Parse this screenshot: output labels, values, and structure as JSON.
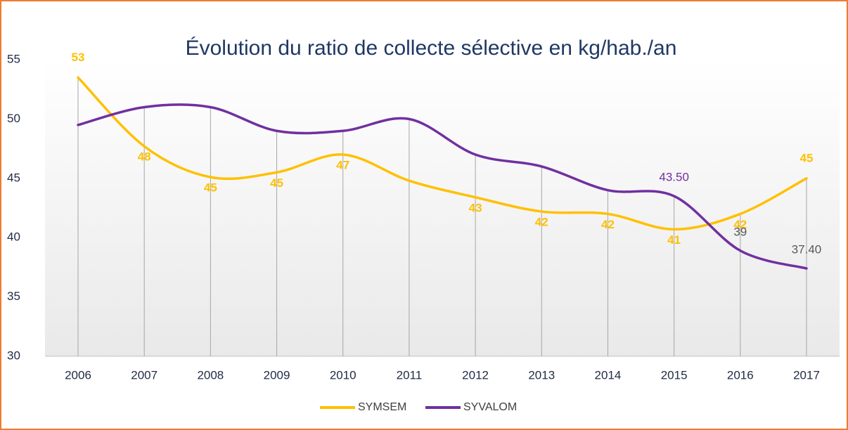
{
  "chart_data": {
    "type": "line",
    "title": "Évolution du ratio de collecte sélective en kg/hab./an",
    "categories": [
      "2006",
      "2007",
      "2008",
      "2009",
      "2010",
      "2011",
      "2012",
      "2013",
      "2014",
      "2015",
      "2016",
      "2017"
    ],
    "series": [
      {
        "name": "SYMSEM",
        "color": "#ffc000",
        "values": [
          53.5,
          47.7,
          45.1,
          45.5,
          47,
          44.8,
          43.4,
          42.2,
          42,
          40.7,
          42,
          45
        ],
        "value_labels": [
          "53",
          "48",
          "45",
          "45",
          "47",
          null,
          "43",
          "42",
          "42",
          "41",
          "42",
          "45"
        ]
      },
      {
        "name": "SYVALOM",
        "color": "#7030a0",
        "values": [
          49.5,
          51,
          51,
          49,
          49,
          50,
          47,
          46,
          44,
          43.5,
          38.9,
          37.4
        ],
        "value_labels": [
          null,
          null,
          null,
          null,
          null,
          null,
          null,
          null,
          null,
          "43.50",
          "39",
          "37.40"
        ]
      }
    ],
    "ylim": [
      30,
      55
    ],
    "yticks": [
      30,
      35,
      40,
      45,
      50,
      55
    ],
    "legend": "bottom",
    "smooth": true
  }
}
